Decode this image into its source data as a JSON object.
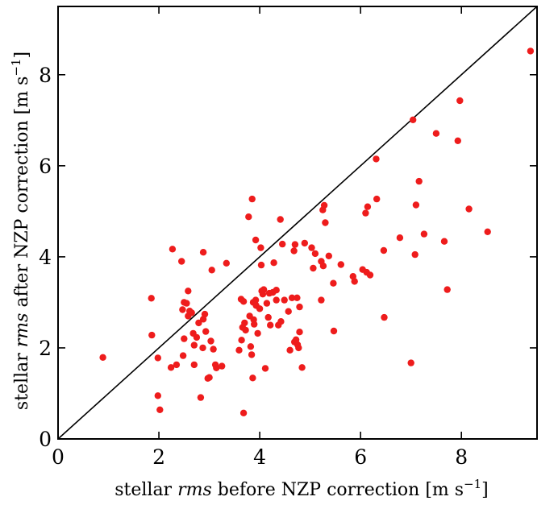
{
  "chart_data": {
    "type": "scatter",
    "xlim": [
      0,
      9.5
    ],
    "ylim": [
      0,
      9.5
    ],
    "x_ticks": [
      0,
      2,
      4,
      6,
      8
    ],
    "y_ticks": [
      0,
      2,
      4,
      6,
      8
    ],
    "x_tick_labels": [
      "0",
      "2",
      "4",
      "6",
      "8"
    ],
    "y_tick_labels": [
      "0",
      "2",
      "4",
      "6",
      "8"
    ],
    "xlabel": {
      "prefix": "stellar ",
      "emph": "rms",
      "suffix": " before NZP correction [m s",
      "sup": "−1",
      "close": "]"
    },
    "ylabel": {
      "prefix": "stellar ",
      "emph": "rms",
      "suffix": " after NZP correction [m s",
      "sup": "−1",
      "close": "]"
    },
    "reference_line": {
      "type": "y=x",
      "color": "#000000"
    },
    "grid": false,
    "marker_color": "#ee1c1c",
    "points": [
      [
        0.89,
        1.79
      ],
      [
        1.85,
        3.09
      ],
      [
        1.86,
        2.28
      ],
      [
        1.98,
        1.78
      ],
      [
        1.98,
        0.95
      ],
      [
        2.02,
        0.64
      ],
      [
        2.27,
        4.17
      ],
      [
        2.24,
        1.57
      ],
      [
        2.35,
        1.63
      ],
      [
        2.45,
        3.9
      ],
      [
        2.47,
        2.84
      ],
      [
        2.5,
        3.0
      ],
      [
        2.48,
        1.83
      ],
      [
        2.5,
        2.2
      ],
      [
        2.55,
        2.98
      ],
      [
        2.58,
        3.25
      ],
      [
        2.58,
        2.7
      ],
      [
        2.61,
        2.81
      ],
      [
        2.65,
        2.77
      ],
      [
        2.68,
        2.32
      ],
      [
        2.7,
        1.63
      ],
      [
        2.7,
        2.06
      ],
      [
        2.75,
        2.23
      ],
      [
        2.79,
        2.55
      ],
      [
        2.83,
        0.91
      ],
      [
        2.87,
        2.0
      ],
      [
        2.88,
        2.63
      ],
      [
        2.88,
        4.1
      ],
      [
        2.91,
        2.74
      ],
      [
        2.93,
        2.36
      ],
      [
        2.97,
        1.33
      ],
      [
        3.0,
        1.35
      ],
      [
        3.03,
        2.15
      ],
      [
        3.05,
        3.71
      ],
      [
        3.08,
        1.97
      ],
      [
        3.12,
        1.63
      ],
      [
        3.14,
        1.56
      ],
      [
        3.25,
        1.6
      ],
      [
        3.34,
        3.86
      ],
      [
        3.59,
        1.95
      ],
      [
        3.63,
        3.07
      ],
      [
        3.64,
        2.17
      ],
      [
        3.66,
        2.45
      ],
      [
        3.68,
        3.02
      ],
      [
        3.68,
        0.57
      ],
      [
        3.7,
        2.55
      ],
      [
        3.72,
        2.39
      ],
      [
        3.78,
        4.88
      ],
      [
        3.8,
        2.7
      ],
      [
        3.82,
        2.03
      ],
      [
        3.84,
        1.85
      ],
      [
        3.85,
        5.27
      ],
      [
        3.86,
        1.34
      ],
      [
        3.87,
        3.0
      ],
      [
        3.88,
        2.62
      ],
      [
        3.89,
        2.52
      ],
      [
        3.92,
        3.05
      ],
      [
        3.92,
        4.37
      ],
      [
        3.93,
        2.93
      ],
      [
        3.96,
        2.32
      ],
      [
        4.0,
        2.86
      ],
      [
        4.02,
        4.2
      ],
      [
        4.03,
        3.82
      ],
      [
        4.04,
        3.25
      ],
      [
        4.06,
        3.18
      ],
      [
        4.08,
        3.28
      ],
      [
        4.11,
        1.55
      ],
      [
        4.14,
        2.98
      ],
      [
        4.17,
        2.67
      ],
      [
        4.19,
        3.2
      ],
      [
        4.21,
        2.5
      ],
      [
        4.26,
        3.22
      ],
      [
        4.28,
        3.87
      ],
      [
        4.33,
        3.05
      ],
      [
        4.33,
        3.27
      ],
      [
        4.37,
        2.5
      ],
      [
        4.41,
        4.82
      ],
      [
        4.42,
        2.58
      ],
      [
        4.45,
        4.28
      ],
      [
        4.49,
        3.05
      ],
      [
        4.57,
        2.8
      ],
      [
        4.6,
        1.95
      ],
      [
        4.64,
        3.1
      ],
      [
        4.68,
        4.13
      ],
      [
        4.69,
        2.13
      ],
      [
        4.7,
        4.27
      ],
      [
        4.72,
        2.18
      ],
      [
        4.74,
        3.1
      ],
      [
        4.75,
        2.07
      ],
      [
        4.77,
        2.0
      ],
      [
        4.79,
        2.35
      ],
      [
        4.79,
        2.9
      ],
      [
        4.84,
        1.57
      ],
      [
        4.89,
        4.3
      ],
      [
        5.03,
        4.2
      ],
      [
        5.06,
        3.75
      ],
      [
        5.1,
        4.07
      ],
      [
        5.22,
        3.9
      ],
      [
        5.22,
        3.05
      ],
      [
        5.25,
        5.03
      ],
      [
        5.26,
        3.8
      ],
      [
        5.28,
        5.13
      ],
      [
        5.3,
        4.75
      ],
      [
        5.37,
        4.02
      ],
      [
        5.46,
        3.42
      ],
      [
        5.47,
        2.37
      ],
      [
        5.61,
        3.83
      ],
      [
        5.85,
        3.57
      ],
      [
        5.88,
        3.46
      ],
      [
        6.04,
        3.72
      ],
      [
        6.1,
        4.96
      ],
      [
        6.12,
        3.66
      ],
      [
        6.14,
        5.1
      ],
      [
        6.19,
        3.6
      ],
      [
        6.31,
        6.15
      ],
      [
        6.32,
        5.27
      ],
      [
        6.46,
        4.14
      ],
      [
        6.47,
        2.67
      ],
      [
        6.78,
        4.42
      ],
      [
        7.0,
        1.67
      ],
      [
        7.04,
        7.01
      ],
      [
        7.08,
        4.05
      ],
      [
        7.1,
        5.14
      ],
      [
        7.16,
        5.66
      ],
      [
        7.26,
        4.5
      ],
      [
        7.5,
        6.71
      ],
      [
        7.66,
        4.34
      ],
      [
        7.72,
        3.28
      ],
      [
        7.93,
        6.55
      ],
      [
        7.97,
        7.43
      ],
      [
        8.15,
        5.05
      ],
      [
        8.52,
        4.55
      ],
      [
        9.37,
        8.52
      ]
    ]
  }
}
